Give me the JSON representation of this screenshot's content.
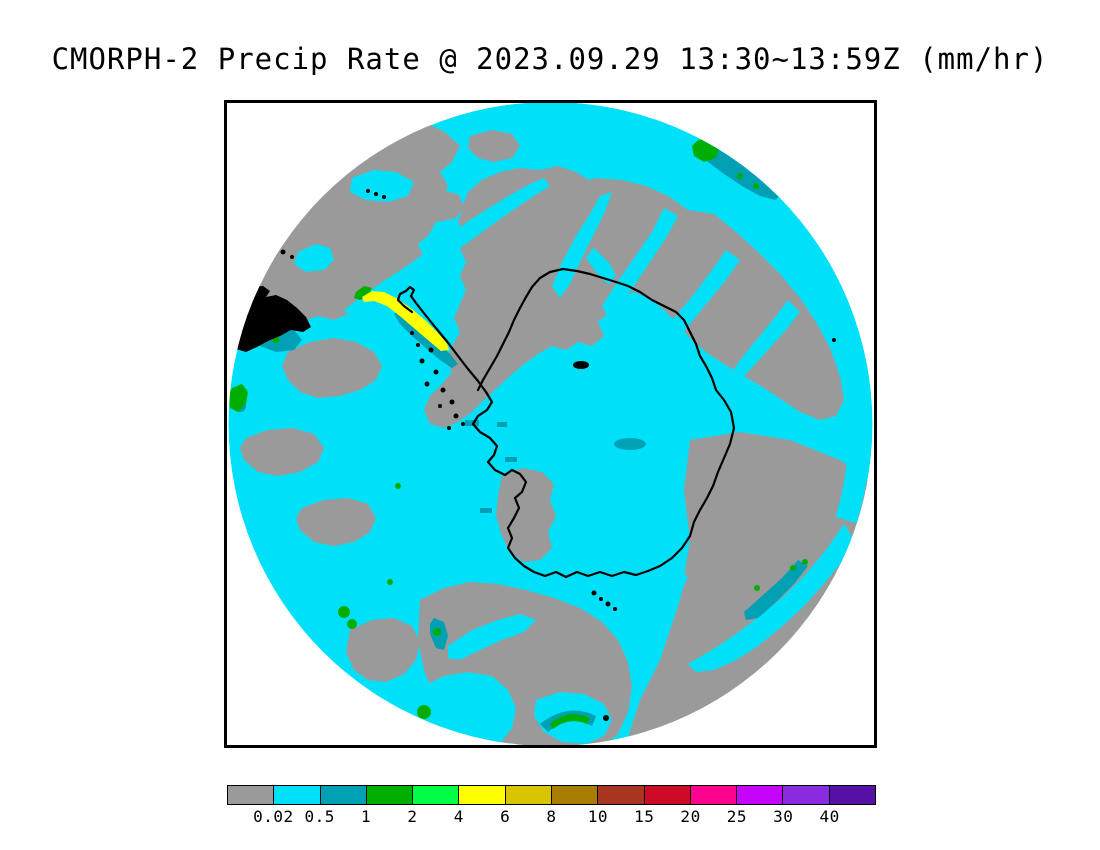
{
  "title": "CMORPH-2 Precip Rate @ 2023.09.29 13:30~13:59Z (mm/hr)",
  "chart_data": {
    "type": "heatmap",
    "product": "CMORPH-2",
    "variable": "Precip Rate",
    "datetime": "2023.09.29 13:30~13:59Z",
    "units": "mm/hr",
    "region": "South polar stereographic view (Antarctica, tip of South America at upper left)",
    "colorbar": {
      "tick_labels": [
        "0.02",
        "0.5",
        "1",
        "2",
        "4",
        "6",
        "8",
        "10",
        "15",
        "20",
        "25",
        "30",
        "40"
      ],
      "bin_edges_mm_per_hr": [
        0.02,
        0.5,
        1,
        2,
        4,
        6,
        8,
        10,
        15,
        20,
        25,
        30,
        40
      ],
      "segment_colors": [
        "#9a9a9a",
        "#00e0f8",
        "#00a0b4",
        "#00ae00",
        "#00ff44",
        "#ffff00",
        "#d9c400",
        "#a87d00",
        "#a93620",
        "#cd0a28",
        "#fb0490",
        "#c505fa",
        "#8b2be0",
        "#5511a5"
      ],
      "legend_ranges": [
        "< 0.02",
        "0.02-0.5",
        "0.5-1",
        "1-2",
        "2-4",
        "4-6",
        "6-8",
        "8-10",
        "10-15",
        "15-20",
        "20-25",
        "25-30",
        "30-40",
        "> 40"
      ]
    },
    "map_notes": {
      "dominant_fills": "gray = below 0.02 mm/hr, cyan = 0.02-0.5 mm/hr",
      "notable_features": "yellow precip streak (4-6 mm/hr) northwest of Antarctic Peninsula; teal/green streak near top-right rim; green patches lower left and bottom; Antarctica coastline drawn in black"
    }
  },
  "colors": {
    "frame_border": "#000000",
    "page_background": "#ffffff",
    "coastline": "#000000"
  }
}
